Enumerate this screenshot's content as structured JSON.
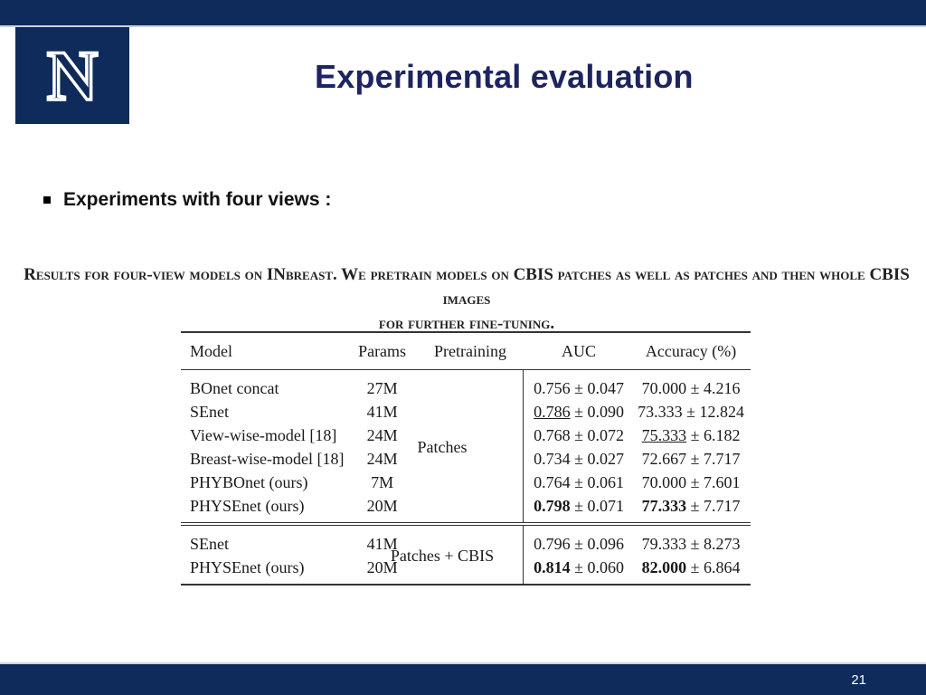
{
  "slide": {
    "title": "Experimental evaluation",
    "bullet": "Experiments with four views :",
    "page_number": "21",
    "logo_letter": "N",
    "colors": {
      "navy": "#0f2b5b",
      "title": "#1e2460"
    }
  },
  "table": {
    "caption_line1": "Results for four-view models on INbreast. We pretrain models on CBIS patches as well as patches and then whole CBIS images",
    "caption_line2": "for further fine-tuning.",
    "headers": {
      "model": "Model",
      "params": "Params",
      "pretraining": "Pretraining",
      "auc": "AUC",
      "accuracy": "Accuracy (%)"
    },
    "groups": [
      {
        "pretraining": "Patches",
        "rows": [
          {
            "model": "BOnet concat",
            "params": "27M",
            "auc_mean": "0.756",
            "auc_std": "0.047",
            "acc_mean": "70.000",
            "acc_std": "4.216"
          },
          {
            "model": "SEnet",
            "params": "41M",
            "auc_mean": "0.786",
            "auc_std": "0.090",
            "acc_mean": "73.333",
            "acc_std": "12.824"
          },
          {
            "model": "View-wise-model [18]",
            "params": "24M",
            "auc_mean": "0.768",
            "auc_std": "0.072",
            "acc_mean": "75.333",
            "acc_std": "6.182"
          },
          {
            "model": "Breast-wise-model [18]",
            "params": "24M",
            "auc_mean": "0.734",
            "auc_std": "0.027",
            "acc_mean": "72.667",
            "acc_std": "7.717"
          },
          {
            "model": "PHYBOnet (ours)",
            "params": "7M",
            "auc_mean": "0.764",
            "auc_std": "0.061",
            "acc_mean": "70.000",
            "acc_std": "7.601"
          },
          {
            "model": "PHYSEnet (ours)",
            "params": "20M",
            "auc_mean": "0.798",
            "auc_std": "0.071",
            "acc_mean": "77.333",
            "acc_std": "7.717"
          }
        ]
      },
      {
        "pretraining": "Patches + CBIS",
        "rows": [
          {
            "model": "SEnet",
            "params": "41M",
            "auc_mean": "0.796",
            "auc_std": "0.096",
            "acc_mean": "79.333",
            "acc_std": "8.273"
          },
          {
            "model": "PHYSEnet (ours)",
            "params": "20M",
            "auc_mean": "0.814",
            "auc_std": "0.060",
            "acc_mean": "82.000",
            "acc_std": "6.864"
          }
        ]
      }
    ]
  }
}
